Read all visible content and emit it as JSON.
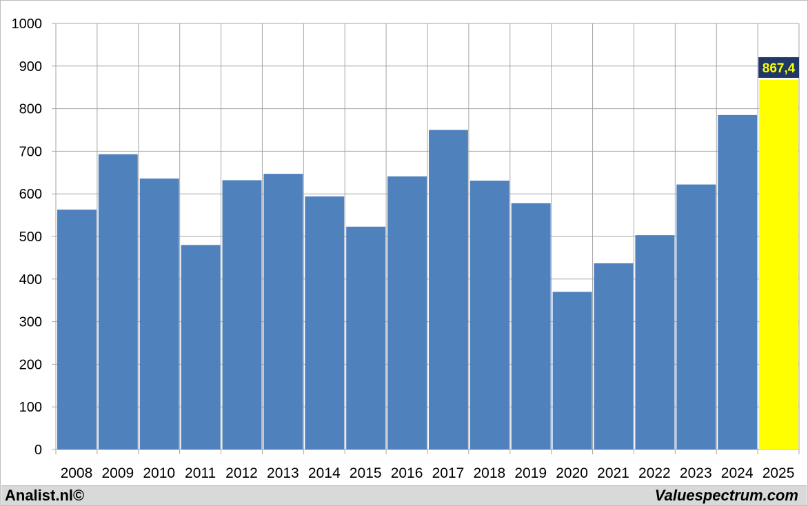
{
  "chart_data": {
    "type": "bar",
    "categories": [
      "2008",
      "2009",
      "2010",
      "2011",
      "2012",
      "2013",
      "2014",
      "2015",
      "2016",
      "2017",
      "2018",
      "2019",
      "2020",
      "2021",
      "2022",
      "2023",
      "2024",
      "2025"
    ],
    "values": [
      563,
      693,
      636,
      480,
      632,
      647,
      594,
      523,
      641,
      750,
      631,
      578,
      370,
      437,
      503,
      622,
      785,
      867.4
    ],
    "highlight_label": "867,4",
    "yticks": [
      "0",
      "100",
      "200",
      "300",
      "400",
      "500",
      "600",
      "700",
      "800",
      "900",
      "1000"
    ],
    "ylim": [
      0,
      1000
    ],
    "grid": true,
    "colors": {
      "bar": "#4f81bd",
      "highlight": "#ffff00",
      "label_bg": "#1f3864",
      "label_text": "#ffff00",
      "grid": "#a6a6a6"
    }
  },
  "footer": {
    "left": "Analist.nl©",
    "right": "Valuespectrum.com"
  }
}
